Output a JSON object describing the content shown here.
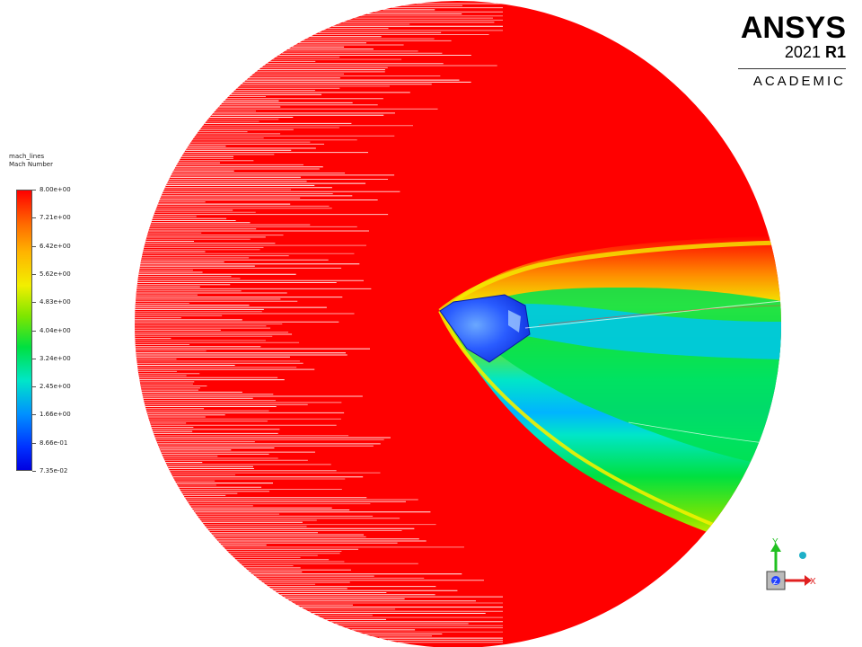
{
  "logo": {
    "brand": "ANSYS",
    "version_year": "2021",
    "version_release": "R1",
    "edition": "ACADEMIC"
  },
  "legend": {
    "name": "mach_lines",
    "variable": "Mach Number",
    "ticks": [
      "8.00e+00",
      "7.21e+00",
      "6.42e+00",
      "5.62e+00",
      "4.83e+00",
      "4.04e+00",
      "3.24e+00",
      "2.45e+00",
      "1.66e+00",
      "8.66e-01",
      "7.35e-02"
    ],
    "colors": [
      "#ff0000",
      "#ff7a00",
      "#ffc000",
      "#e8ef00",
      "#7ee600",
      "#00e040",
      "#00e6b0",
      "#00c8ff",
      "#0080ff",
      "#0030ff",
      "#0000e0"
    ]
  },
  "triad": {
    "x_label": "X",
    "y_label": "Y",
    "z_label": "Z",
    "x_color": "#e02020",
    "y_color": "#20c020",
    "z_color": "#2040ff"
  }
}
